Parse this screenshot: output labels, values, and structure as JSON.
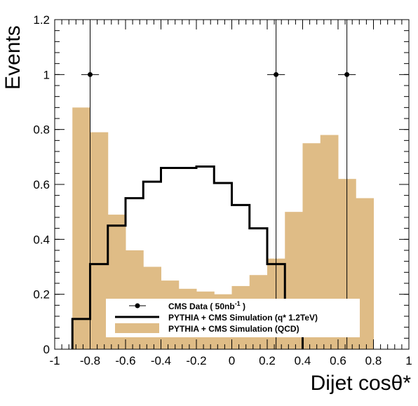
{
  "chart_data": {
    "type": "histogram",
    "xlabel": "Dijet cosθ*",
    "ylabel": "Events",
    "xlim": [
      -1,
      1
    ],
    "ylim": [
      0,
      1.2
    ],
    "grid": false,
    "legend_position": "bottom-center",
    "x_ticks": [
      "-1",
      "-0.8",
      "-0.6",
      "-0.4",
      "-0.2",
      "0",
      "0.2",
      "0.4",
      "0.6",
      "0.8",
      "1"
    ],
    "y_ticks": [
      "0",
      "0.2",
      "0.4",
      "0.6",
      "0.8",
      "1",
      "1.2"
    ],
    "bin_edges": [
      -0.9,
      -0.8,
      -0.7,
      -0.6,
      -0.5,
      -0.4,
      -0.3,
      -0.2,
      -0.1,
      0.0,
      0.1,
      0.2,
      0.3,
      0.4,
      0.5,
      0.6,
      0.7,
      0.8,
      0.9
    ],
    "series": [
      {
        "name": "PYTHIA + CMS Simulation (QCD)",
        "kind": "filled_histogram",
        "color": "#dfbc86",
        "values": [
          0.88,
          0.79,
          0.49,
          0.36,
          0.3,
          0.25,
          0.22,
          0.21,
          0.2,
          0.23,
          0.27,
          0.33,
          0.5,
          0.75,
          0.78,
          0.62,
          0.55,
          0.0
        ]
      },
      {
        "name": "PYTHIA + CMS Simulation (q* 1.2TeV)",
        "kind": "line_histogram",
        "color": "#000000",
        "values": [
          0.11,
          0.31,
          0.45,
          0.55,
          0.61,
          0.66,
          0.66,
          0.665,
          0.605,
          0.525,
          0.44,
          0.31,
          0.11,
          0.0,
          0.0,
          0.0,
          0.0,
          0.0
        ]
      },
      {
        "name": "CMS Data ( 50nb",
        "name_superscript": "-1",
        "name_suffix": " )",
        "kind": "points",
        "color": "#000000",
        "points": [
          {
            "x": -0.8,
            "y": 1.0,
            "xerr": 0.05
          },
          {
            "x": 0.25,
            "y": 1.0,
            "xerr": 0.05
          },
          {
            "x": 0.65,
            "y": 1.0,
            "xerr": 0.05
          }
        ]
      }
    ]
  }
}
